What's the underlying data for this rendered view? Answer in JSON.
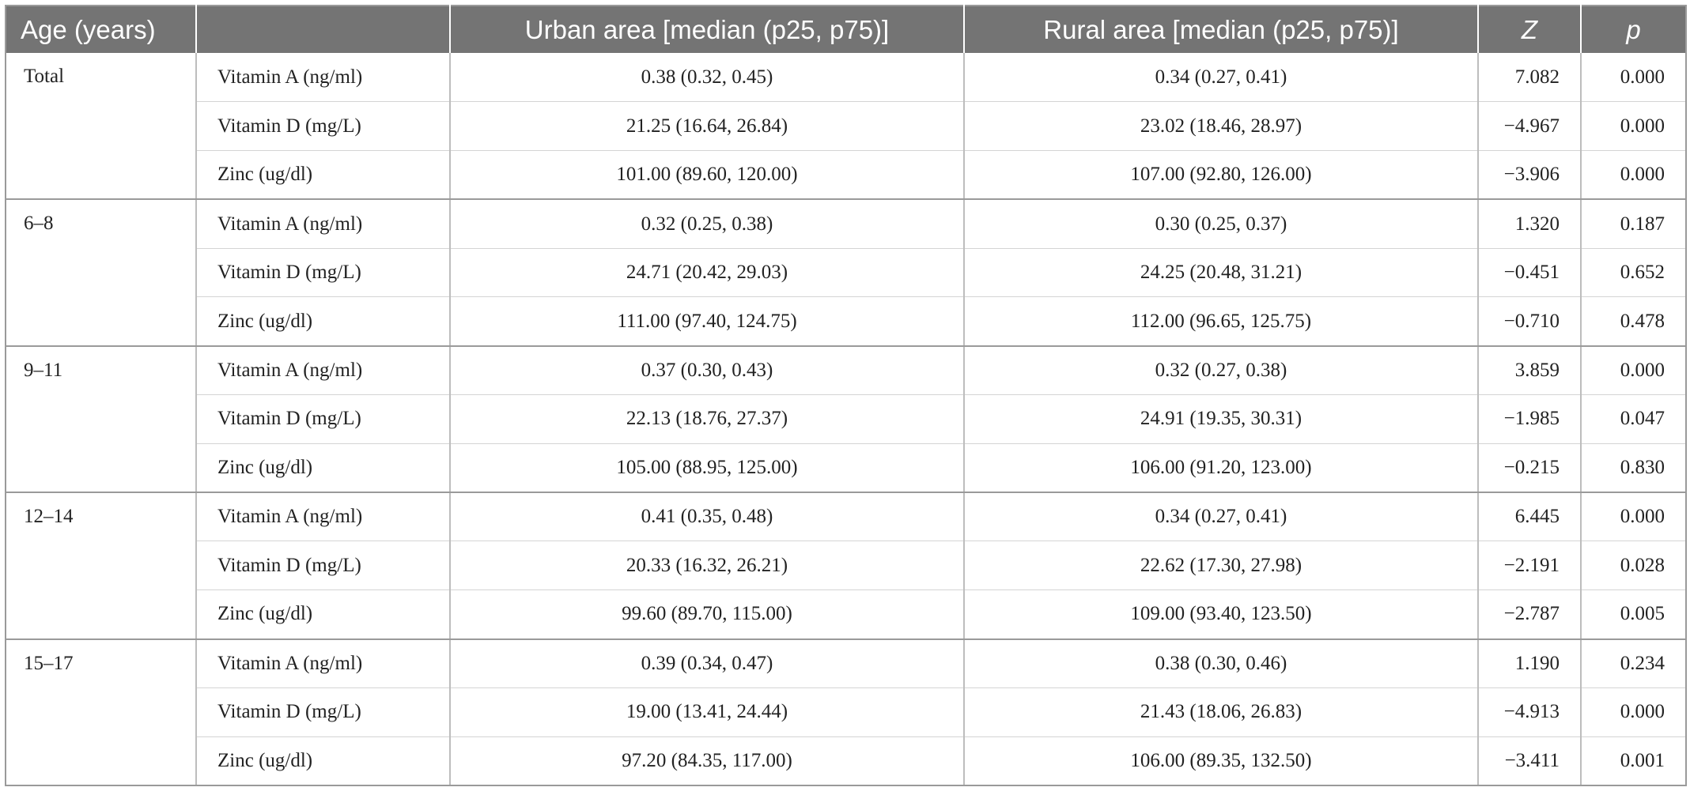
{
  "header": {
    "age": "Age (years)",
    "nutrient": "",
    "urban": "Urban area [median (p25, p75)]",
    "rural": "Rural area [median (p25, p75)]",
    "z": "Z",
    "p": "p"
  },
  "groups": [
    {
      "age": "Total",
      "rows": [
        {
          "nutrient": "Vitamin A (ng/ml)",
          "urban": "0.38 (0.32, 0.45)",
          "rural": "0.34 (0.27, 0.41)",
          "z": "7.082",
          "p": "0.000"
        },
        {
          "nutrient": "Vitamin D (mg/L)",
          "urban": "21.25 (16.64, 26.84)",
          "rural": "23.02 (18.46, 28.97)",
          "z": "−4.967",
          "p": "0.000"
        },
        {
          "nutrient": "Zinc (ug/dl)",
          "urban": "101.00 (89.60, 120.00)",
          "rural": "107.00 (92.80, 126.00)",
          "z": "−3.906",
          "p": "0.000"
        }
      ]
    },
    {
      "age": "6–8",
      "rows": [
        {
          "nutrient": "Vitamin A (ng/ml)",
          "urban": "0.32 (0.25, 0.38)",
          "rural": "0.30 (0.25, 0.37)",
          "z": "1.320",
          "p": "0.187"
        },
        {
          "nutrient": "Vitamin D (mg/L)",
          "urban": "24.71 (20.42, 29.03)",
          "rural": "24.25 (20.48, 31.21)",
          "z": "−0.451",
          "p": "0.652"
        },
        {
          "nutrient": "Zinc (ug/dl)",
          "urban": "111.00 (97.40, 124.75)",
          "rural": "112.00 (96.65, 125.75)",
          "z": "−0.710",
          "p": "0.478"
        }
      ]
    },
    {
      "age": "9–11",
      "rows": [
        {
          "nutrient": "Vitamin A (ng/ml)",
          "urban": "0.37 (0.30, 0.43)",
          "rural": "0.32 (0.27, 0.38)",
          "z": "3.859",
          "p": "0.000"
        },
        {
          "nutrient": "Vitamin D (mg/L)",
          "urban": "22.13 (18.76, 27.37)",
          "rural": "24.91 (19.35, 30.31)",
          "z": "−1.985",
          "p": "0.047"
        },
        {
          "nutrient": "Zinc (ug/dl)",
          "urban": "105.00 (88.95, 125.00)",
          "rural": "106.00 (91.20, 123.00)",
          "z": "−0.215",
          "p": "0.830"
        }
      ]
    },
    {
      "age": "12–14",
      "rows": [
        {
          "nutrient": "Vitamin A (ng/ml)",
          "urban": "0.41 (0.35, 0.48)",
          "rural": "0.34 (0.27, 0.41)",
          "z": "6.445",
          "p": "0.000"
        },
        {
          "nutrient": "Vitamin D (mg/L)",
          "urban": "20.33 (16.32, 26.21)",
          "rural": "22.62 (17.30, 27.98)",
          "z": "−2.191",
          "p": "0.028"
        },
        {
          "nutrient": "Zinc (ug/dl)",
          "urban": "99.60 (89.70, 115.00)",
          "rural": "109.00 (93.40, 123.50)",
          "z": "−2.787",
          "p": "0.005"
        }
      ]
    },
    {
      "age": "15–17",
      "rows": [
        {
          "nutrient": "Vitamin A (ng/ml)",
          "urban": "0.39 (0.34, 0.47)",
          "rural": "0.38 (0.30, 0.46)",
          "z": "1.190",
          "p": "0.234"
        },
        {
          "nutrient": "Vitamin D (mg/L)",
          "urban": "19.00 (13.41, 24.44)",
          "rural": "21.43 (18.06, 26.83)",
          "z": "−4.913",
          "p": "0.000"
        },
        {
          "nutrient": "Zinc (ug/dl)",
          "urban": "97.20 (84.35, 117.00)",
          "rural": "106.00 (89.35, 132.50)",
          "z": "−3.411",
          "p": "0.001"
        }
      ]
    }
  ]
}
